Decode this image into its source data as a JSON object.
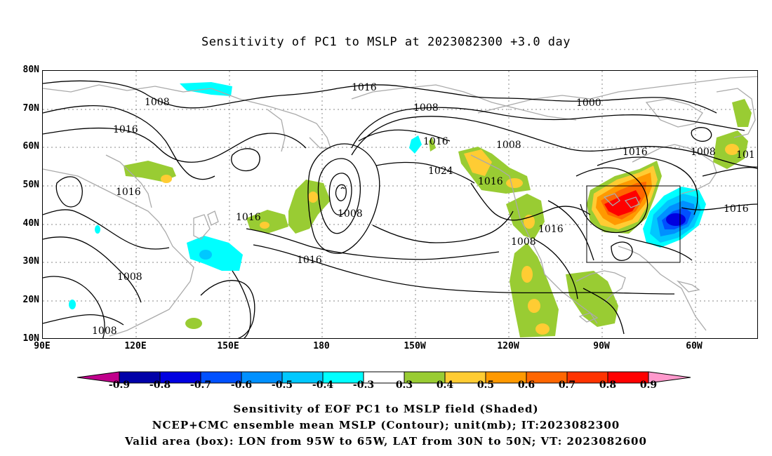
{
  "title": "Sensitivity of PC1 to MSLP at 2023082300 +3.0 day",
  "axes": {
    "lat_labels": [
      "80N",
      "70N",
      "60N",
      "50N",
      "40N",
      "30N",
      "20N",
      "10N"
    ],
    "lon_labels": [
      "90E",
      "120E",
      "150E",
      "180",
      "150W",
      "120W",
      "90W",
      "60W"
    ],
    "lon_range": [
      "90E",
      "45W"
    ],
    "lat_range": [
      "10N",
      "80N"
    ],
    "gridlines": "dotted"
  },
  "contour_labels": [
    "1016",
    "1008",
    "1008",
    "1000",
    "1016",
    "1016",
    "1008",
    "1008",
    "101",
    "1016",
    "1016",
    "1024",
    "1016",
    "1016",
    "1008",
    "1016",
    "1008",
    "1016",
    "1008",
    "1016",
    "1008"
  ],
  "valid_box": {
    "lon_min": -95,
    "lon_max": -65,
    "lat_min": 30,
    "lat_max": 50
  },
  "colorbar": {
    "labels": [
      "-0.9",
      "-0.8",
      "-0.7",
      "-0.6",
      "-0.5",
      "-0.4",
      "-0.3",
      "0.3",
      "0.4",
      "0.5",
      "0.6",
      "0.7",
      "0.8",
      "0.9"
    ],
    "colors": [
      "#c0008c",
      "#0000a8",
      "#0000e0",
      "#0050ff",
      "#0090ff",
      "#00c8ff",
      "#00ffff",
      "#ffffff",
      "#99cc33",
      "#ffcc33",
      "#ff9900",
      "#ff6600",
      "#ff3300",
      "#ff0000",
      "#ff99cc"
    ]
  },
  "captions": [
    "Sensitivity of EOF PC1 to MSLP field (Shaded)",
    "NCEP+CMC ensemble mean MSLP (Contour); unit(mb); IT:2023082300",
    "Valid area (box): LON from 95W to 65W, LAT from 30N to 50N; VT: 2023082600"
  ]
}
